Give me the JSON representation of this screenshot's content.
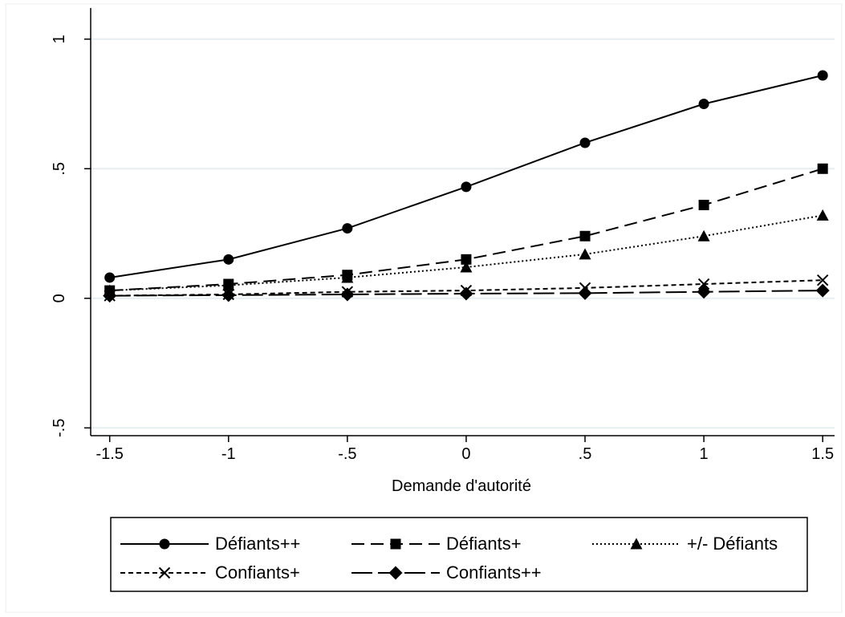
{
  "chart_data": {
    "type": "line",
    "title": "",
    "xlabel": "Demande d'autorité",
    "ylabel": "",
    "x": [
      -1.5,
      -1,
      -0.5,
      0,
      0.5,
      1,
      1.5
    ],
    "x_tick_values": [
      -1.5,
      -1,
      -0.5,
      0,
      0.5,
      1,
      1.5
    ],
    "x_tick_labels": [
      "-1.5",
      "-1",
      "-.5",
      "0",
      ".5",
      "1",
      "1.5"
    ],
    "y_tick_values": [
      -0.5,
      0,
      0.5,
      1
    ],
    "y_tick_labels": [
      "-.5",
      "0",
      ".5",
      "1"
    ],
    "xlim": [
      -1.58,
      1.55
    ],
    "ylim": [
      -0.53,
      1.12
    ],
    "grid": "horizontal",
    "legend_position": "bottom",
    "series": [
      {
        "name": "Défiants++",
        "marker": "circle",
        "dash": "solid",
        "values": [
          0.08,
          0.15,
          0.27,
          0.43,
          0.6,
          0.75,
          0.86
        ]
      },
      {
        "name": "Défiants+",
        "marker": "square",
        "dash": "dash",
        "values": [
          0.03,
          0.055,
          0.09,
          0.15,
          0.24,
          0.36,
          0.5
        ]
      },
      {
        "name": "+/- Défiants",
        "marker": "triangle",
        "dash": "dot",
        "values": [
          0.03,
          0.05,
          0.08,
          0.12,
          0.17,
          0.24,
          0.32
        ]
      },
      {
        "name": "Confiants+",
        "marker": "x",
        "dash": "shortdash",
        "values": [
          0.01,
          0.015,
          0.025,
          0.03,
          0.04,
          0.055,
          0.07
        ]
      },
      {
        "name": "Confiants++",
        "marker": "diamond",
        "dash": "longdash",
        "values": [
          0.01,
          0.012,
          0.015,
          0.018,
          0.02,
          0.025,
          0.03
        ]
      }
    ]
  }
}
